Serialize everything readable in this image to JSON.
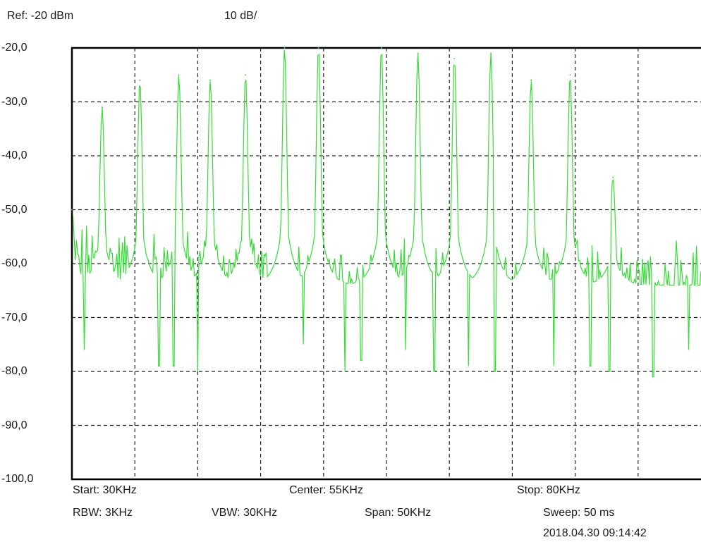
{
  "header": {
    "ref": "Ref: -20 dBm",
    "scale": "10 dB/"
  },
  "footer": {
    "start": "Start: 30KHz",
    "center": "Center: 55KHz",
    "stop": "Stop: 80KHz",
    "rbw": "RBW: 3KHz",
    "vbw": "VBW: 30KHz",
    "span": "Span: 50KHz",
    "sweep": "Sweep: 50  ms",
    "timestamp": "2018.04.30 09:14:42"
  },
  "colors": {
    "trace": "#33dd33",
    "grid": "#222222",
    "frame": "#000000",
    "background": "#ffffff"
  },
  "chart_data": {
    "type": "line",
    "title": "",
    "xlabel": "",
    "ylabel": "",
    "xlim": [
      30,
      80
    ],
    "ylim": [
      -100,
      -20
    ],
    "y_tick_labels": [
      "-20,0",
      "-30,0",
      "-40,0",
      "-50,0",
      "-60,0",
      "-70,0",
      "-80,0",
      "-90,0",
      "-100,0"
    ],
    "y_ticks": [
      -20,
      -30,
      -40,
      -50,
      -60,
      -70,
      -80,
      -90,
      -100
    ],
    "x_divisions": 10,
    "grid": true,
    "grid_style": "dashed",
    "noise_floor_dbm": -64,
    "series": [
      {
        "peaks": [
          {
            "x": 30.0,
            "y": -50
          },
          {
            "x": 32.4,
            "y": -31
          },
          {
            "x": 35.4,
            "y": -26
          },
          {
            "x": 38.5,
            "y": -25
          },
          {
            "x": 41.0,
            "y": -26
          },
          {
            "x": 43.8,
            "y": -25
          },
          {
            "x": 46.9,
            "y": -20
          },
          {
            "x": 49.6,
            "y": -20
          },
          {
            "x": 54.6,
            "y": -20
          },
          {
            "x": 57.5,
            "y": -21
          },
          {
            "x": 60.4,
            "y": -22
          },
          {
            "x": 63.3,
            "y": -21
          },
          {
            "x": 66.5,
            "y": -26
          },
          {
            "x": 69.6,
            "y": -25
          },
          {
            "x": 73.0,
            "y": -44
          }
        ],
        "dips": [
          {
            "x": 31.0,
            "y": -76
          },
          {
            "x": 36.9,
            "y": -79
          },
          {
            "x": 38.1,
            "y": -79
          },
          {
            "x": 40.0,
            "y": -80
          },
          {
            "x": 48.4,
            "y": -75
          },
          {
            "x": 51.7,
            "y": -80
          },
          {
            "x": 53.0,
            "y": -78
          },
          {
            "x": 56.5,
            "y": -76
          },
          {
            "x": 58.8,
            "y": -80
          },
          {
            "x": 61.5,
            "y": -79
          },
          {
            "x": 63.6,
            "y": -80
          },
          {
            "x": 68.3,
            "y": -79
          },
          {
            "x": 71.2,
            "y": -79
          },
          {
            "x": 72.7,
            "y": -80
          },
          {
            "x": 76.2,
            "y": -81
          },
          {
            "x": 79.0,
            "y": -76
          }
        ]
      }
    ]
  }
}
